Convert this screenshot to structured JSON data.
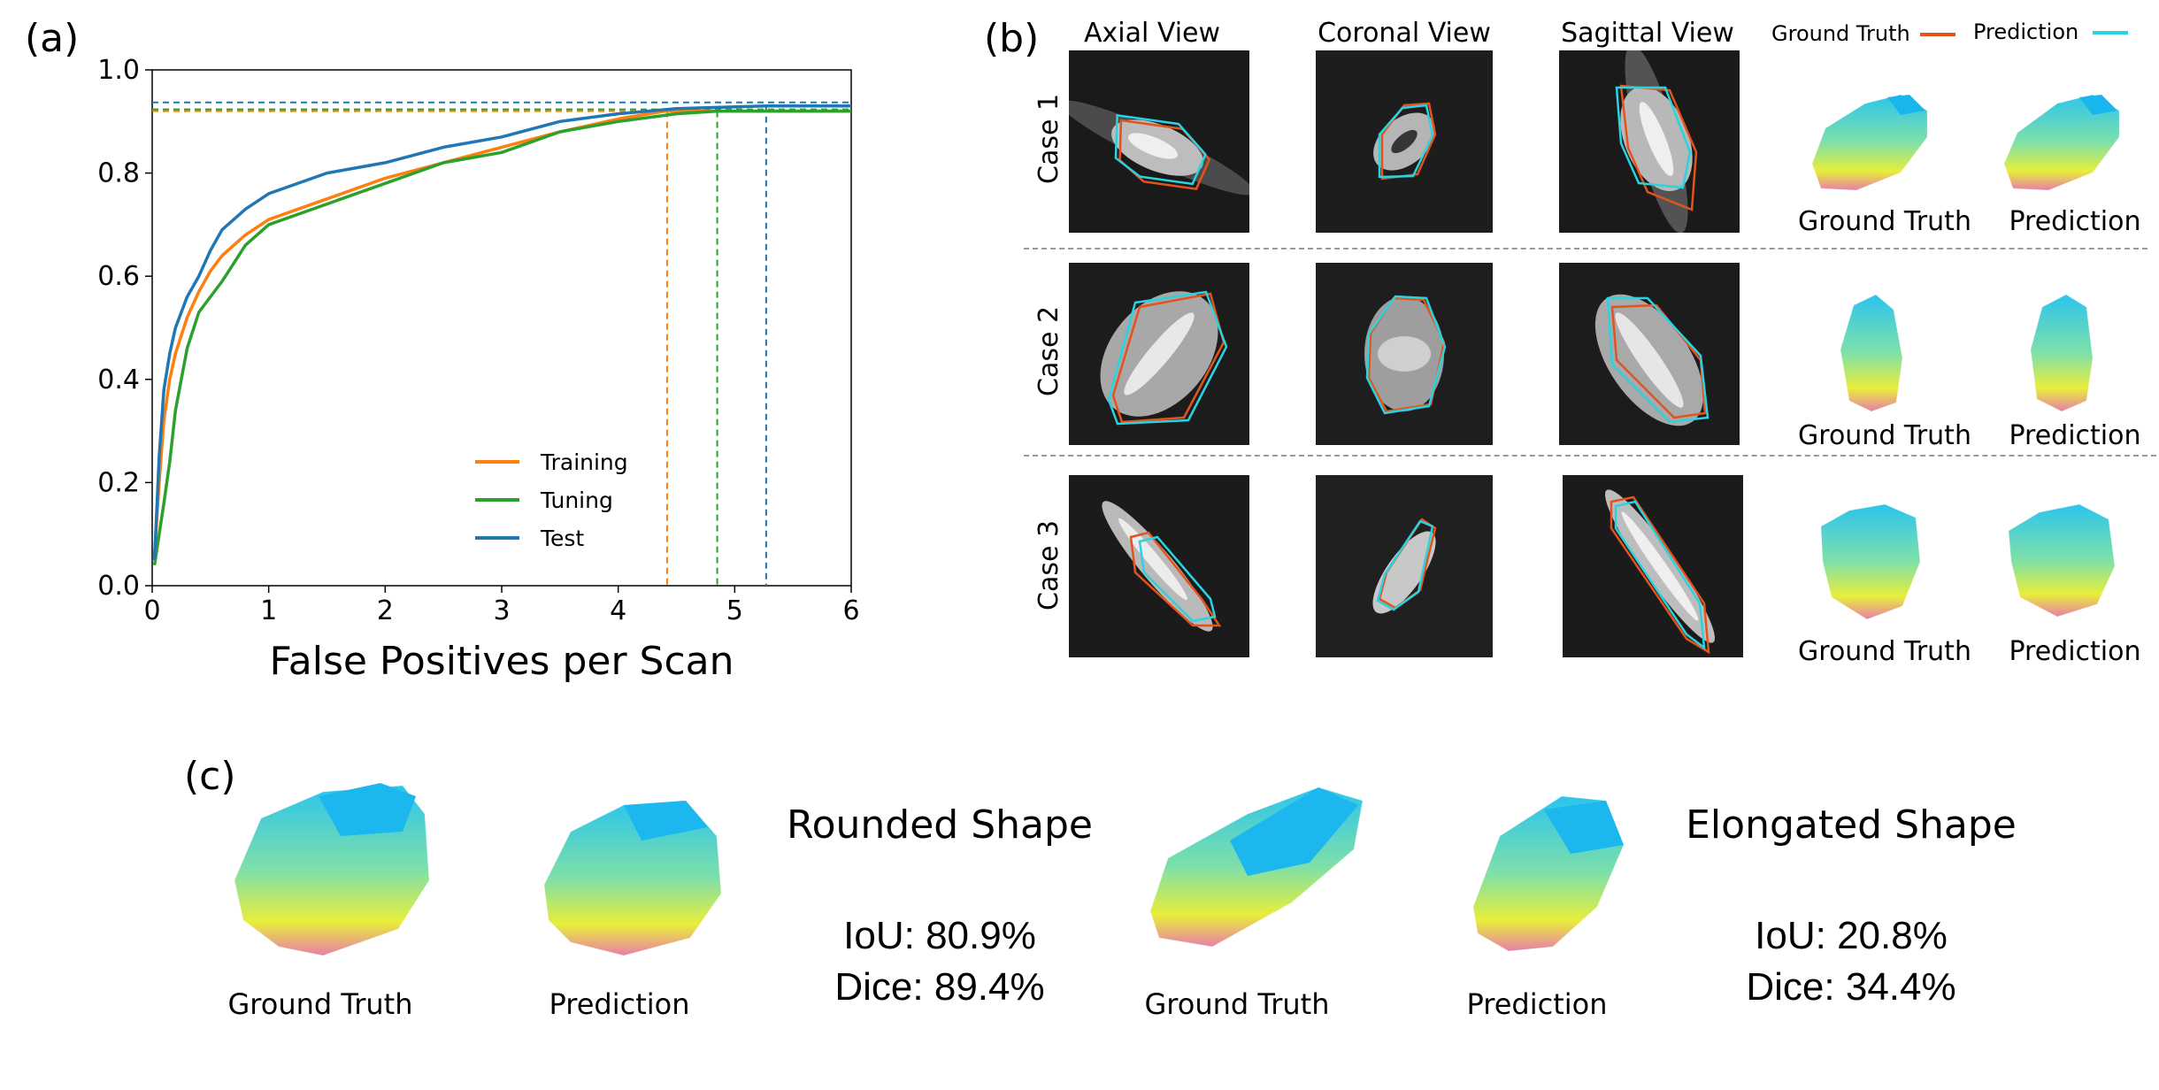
{
  "panels": {
    "a_label": "(a)",
    "b_label": "(b)",
    "c_label": "(c)"
  },
  "chart_data": {
    "type": "line",
    "xlabel": "False Positives per Scan",
    "ylabel": "",
    "xlim": [
      0,
      6
    ],
    "ylim": [
      0,
      1.0
    ],
    "x_ticks": [
      0,
      1,
      2,
      3,
      4,
      5,
      6
    ],
    "y_ticks": [
      0.0,
      0.2,
      0.4,
      0.6,
      0.8,
      1.0
    ],
    "y_tick_labels": [
      "0.0",
      "0.2",
      "0.4",
      "0.6",
      "0.8",
      "1.0"
    ],
    "legend_position": "bottom-center",
    "grid": false,
    "series": [
      {
        "name": "Training",
        "color": "#ff7f0e",
        "x": [
          0.02,
          0.06,
          0.1,
          0.15,
          0.2,
          0.3,
          0.4,
          0.5,
          0.6,
          0.8,
          1.0,
          1.5,
          2.0,
          2.5,
          3.0,
          3.5,
          4.0,
          4.4,
          5.0,
          6.0
        ],
        "y": [
          0.06,
          0.2,
          0.32,
          0.4,
          0.45,
          0.52,
          0.57,
          0.61,
          0.64,
          0.68,
          0.71,
          0.75,
          0.79,
          0.82,
          0.85,
          0.88,
          0.905,
          0.92,
          0.92,
          0.92
        ],
        "plateau": 0.92,
        "drop_x": 4.42
      },
      {
        "name": "Tuning",
        "color": "#2ca02c",
        "x": [
          0.02,
          0.06,
          0.1,
          0.15,
          0.2,
          0.3,
          0.4,
          0.5,
          0.6,
          0.8,
          1.0,
          1.5,
          2.0,
          2.5,
          3.0,
          3.5,
          4.0,
          4.5,
          4.85,
          6.0
        ],
        "y": [
          0.04,
          0.1,
          0.16,
          0.24,
          0.34,
          0.46,
          0.53,
          0.56,
          0.59,
          0.66,
          0.7,
          0.74,
          0.78,
          0.82,
          0.84,
          0.88,
          0.9,
          0.915,
          0.92,
          0.92
        ],
        "plateau": 0.92,
        "drop_x": 4.85
      },
      {
        "name": "Test",
        "color": "#1f77b4",
        "x": [
          0.02,
          0.06,
          0.1,
          0.15,
          0.2,
          0.3,
          0.4,
          0.5,
          0.6,
          0.8,
          1.0,
          1.5,
          2.0,
          2.5,
          3.0,
          3.5,
          4.0,
          4.5,
          5.27,
          6.0
        ],
        "y": [
          0.05,
          0.25,
          0.38,
          0.45,
          0.5,
          0.56,
          0.6,
          0.65,
          0.69,
          0.73,
          0.76,
          0.8,
          0.82,
          0.85,
          0.87,
          0.9,
          0.915,
          0.925,
          0.93,
          0.93
        ],
        "plateau": 0.93,
        "drop_x": 5.27
      }
    ]
  },
  "panel_b": {
    "legend": {
      "ground_truth": "Ground Truth",
      "prediction": "Prediction",
      "gt_color": "#e4531b",
      "pred_color": "#29d3e0"
    },
    "views": [
      "Axial View",
      "Coronal View",
      "Sagittal View"
    ],
    "cases": [
      {
        "label": "Case 1",
        "gt_caption": "Ground Truth",
        "pred_caption": "Prediction"
      },
      {
        "label": "Case 2",
        "gt_caption": "Ground Truth",
        "pred_caption": "Prediction"
      },
      {
        "label": "Case 3",
        "gt_caption": "Ground Truth",
        "pred_caption": "Prediction"
      }
    ]
  },
  "panel_c": {
    "rounded": {
      "title": "Rounded Shape",
      "iou": "IoU: 80.9%",
      "dice": "Dice: 89.4%",
      "gt_caption": "Ground Truth",
      "pred_caption": "Prediction"
    },
    "elongated": {
      "title": "Elongated Shape",
      "iou": "IoU: 20.8%",
      "dice": "Dice: 34.4%",
      "gt_caption": "Ground Truth",
      "pred_caption": "Prediction"
    }
  }
}
